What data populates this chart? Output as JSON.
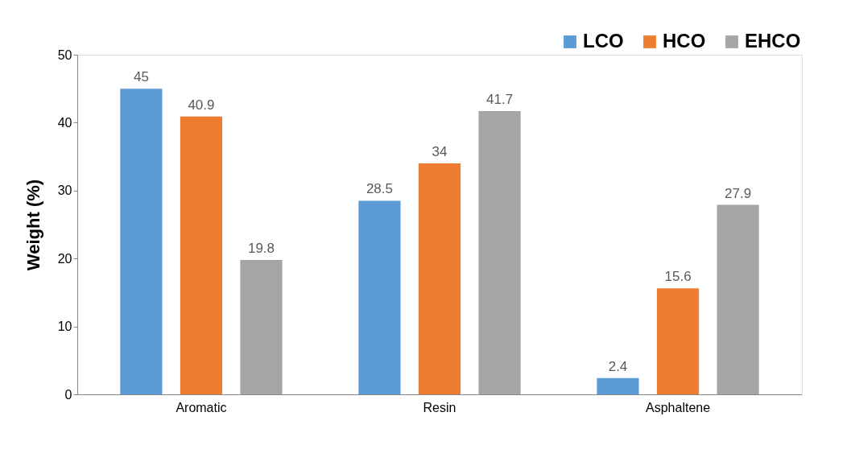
{
  "chart_data": {
    "type": "bar",
    "ylabel": "Weight (%)",
    "categories": [
      "Aromatic",
      "Resin",
      "Asphaltene"
    ],
    "series": [
      {
        "name": "LCO",
        "color": "#5b9bd5",
        "values": [
          45,
          28.5,
          2.4
        ]
      },
      {
        "name": "HCO",
        "color": "#ed7d31",
        "values": [
          40.9,
          34,
          15.6
        ]
      },
      {
        "name": "EHCO",
        "color": "#a5a5a5",
        "values": [
          19.8,
          41.7,
          27.9
        ]
      }
    ],
    "ylim": [
      0,
      50
    ],
    "yticks": [
      0,
      10,
      20,
      30,
      40,
      50
    ],
    "data_labels": true,
    "legend": "top right"
  }
}
